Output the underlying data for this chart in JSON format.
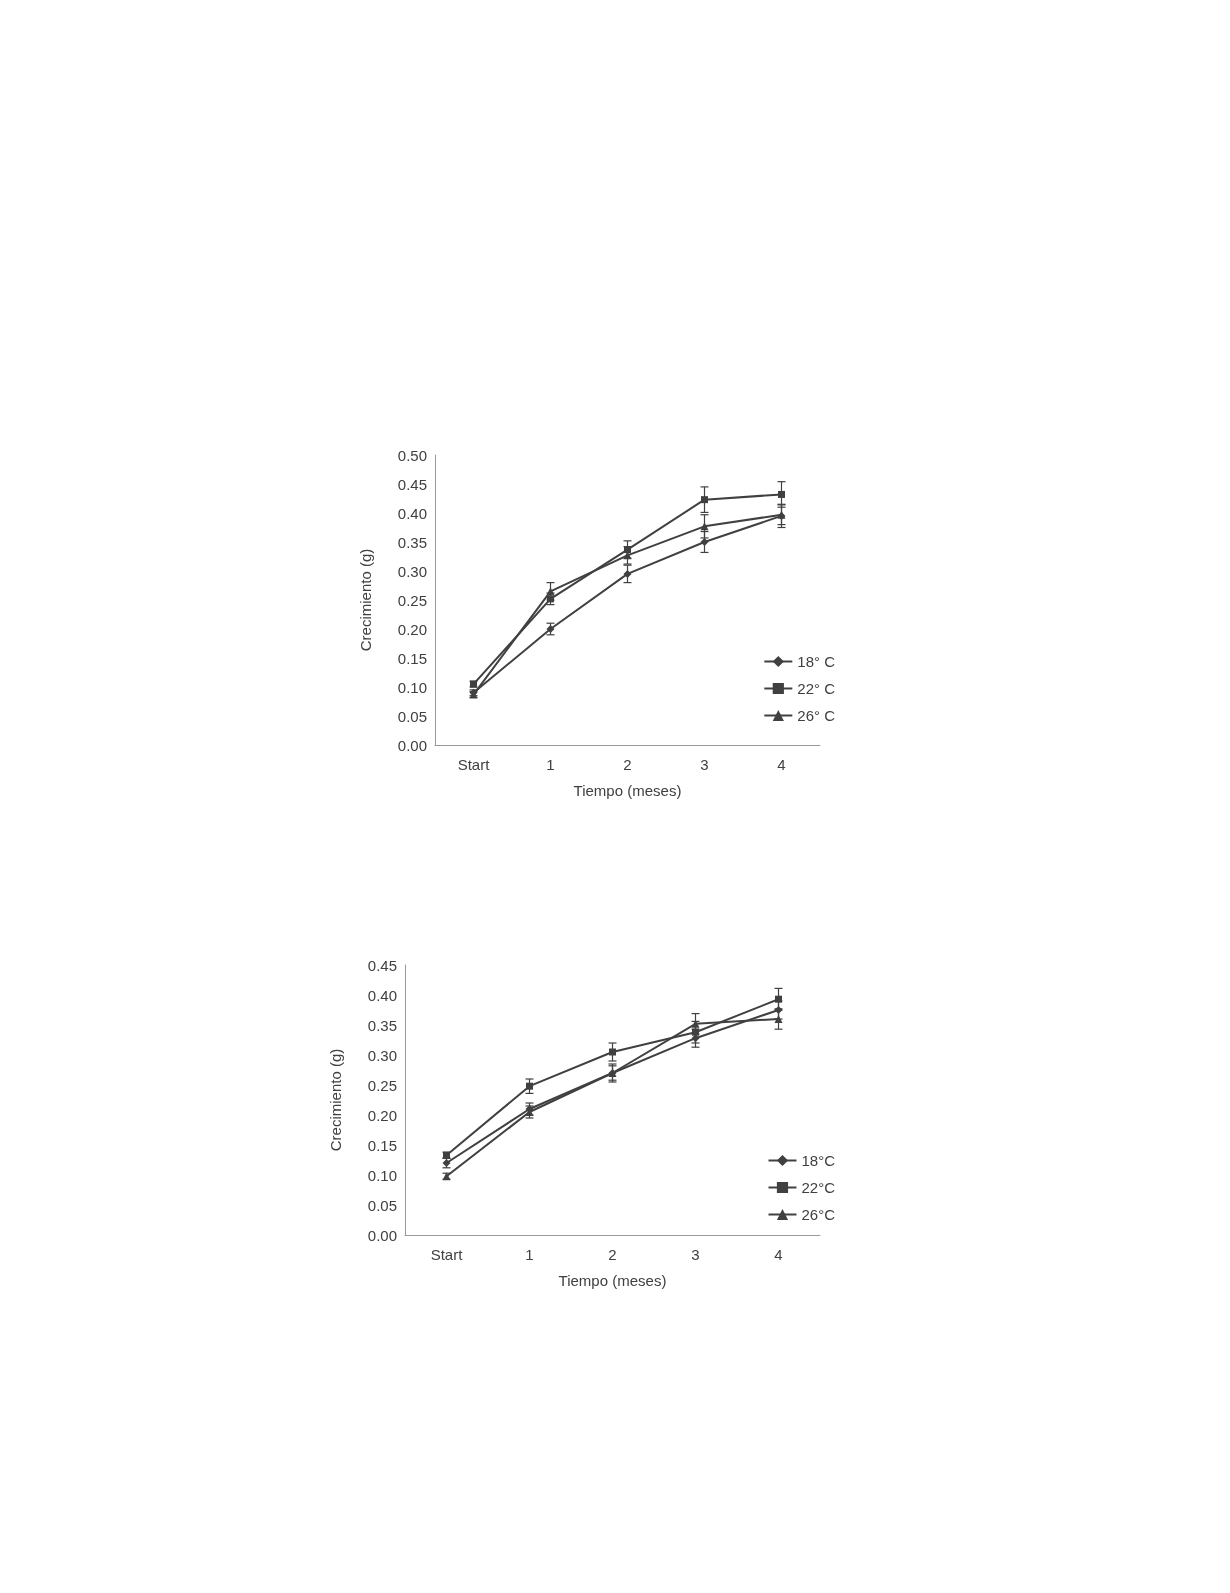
{
  "chart_data": [
    {
      "type": "line",
      "xlabel": "Tiempo (meses)",
      "ylabel": "Crecimiento (g)",
      "categories": [
        "Start",
        "1",
        "2",
        "3",
        "4"
      ],
      "ylim": [
        0,
        0.5
      ],
      "yticks": [
        {
          "value": 0,
          "label": "0.00"
        },
        0.05,
        {
          "value": 0.1,
          "label": "0.10"
        },
        0.15,
        {
          "value": 0.2,
          "label": "0.20"
        },
        0.25,
        {
          "value": 0.3,
          "label": "0.30"
        },
        0.35,
        {
          "value": 0.4,
          "label": "0.40"
        },
        0.45,
        {
          "value": 0.5,
          "label": "0.50"
        }
      ],
      "grid": false,
      "legend": "right",
      "series": [
        {
          "name": "18° C",
          "color": "#404040",
          "marker": "diamond",
          "values": [
            0.09,
            0.2,
            0.295,
            0.35,
            0.395
          ],
          "errors": [
            0.005,
            0.01,
            0.015,
            0.018,
            0.02
          ]
        },
        {
          "name": "22° C",
          "color": "#404040",
          "marker": "square",
          "values": [
            0.105,
            0.252,
            0.337,
            0.423,
            0.432
          ],
          "errors": [
            0.005,
            0.01,
            0.015,
            0.022,
            0.022
          ]
        },
        {
          "name": "26° C",
          "color": "#404040",
          "marker": "triangle",
          "values": [
            0.087,
            0.265,
            0.327,
            0.377,
            0.397
          ],
          "errors": [
            0.005,
            0.015,
            0.015,
            0.02,
            0.017
          ]
        }
      ]
    },
    {
      "type": "line",
      "xlabel": "Tiempo (meses)",
      "ylabel": "Crecimiento (g)",
      "categories": [
        "Start",
        "1",
        "2",
        "3",
        "4"
      ],
      "ylim": [
        0,
        0.45
      ],
      "yticks": [
        {
          "value": 0,
          "label": "0.00"
        },
        0.05,
        {
          "value": 0.1,
          "label": "0.10"
        },
        0.15,
        {
          "value": 0.2,
          "label": "0.20"
        },
        0.25,
        {
          "value": 0.3,
          "label": "0.30"
        },
        0.35,
        {
          "value": 0.4,
          "label": "0.40"
        },
        0.45
      ],
      "grid": false,
      "legend": "right",
      "series": [
        {
          "name": "18°C",
          "color": "#404040",
          "marker": "diamond",
          "values": [
            0.12,
            0.21,
            0.27,
            0.328,
            0.375
          ],
          "errors": [
            0.008,
            0.01,
            0.012,
            0.015,
            0.015
          ]
        },
        {
          "name": "22°C",
          "color": "#404040",
          "marker": "square",
          "values": [
            0.133,
            0.248,
            0.305,
            0.338,
            0.393
          ],
          "errors": [
            0.005,
            0.012,
            0.015,
            0.018,
            0.018
          ]
        },
        {
          "name": "26°C",
          "color": "#404040",
          "marker": "triangle",
          "values": [
            0.098,
            0.205,
            0.27,
            0.352,
            0.36
          ],
          "errors": [
            0.005,
            0.01,
            0.015,
            0.017,
            0.017
          ]
        }
      ]
    }
  ]
}
